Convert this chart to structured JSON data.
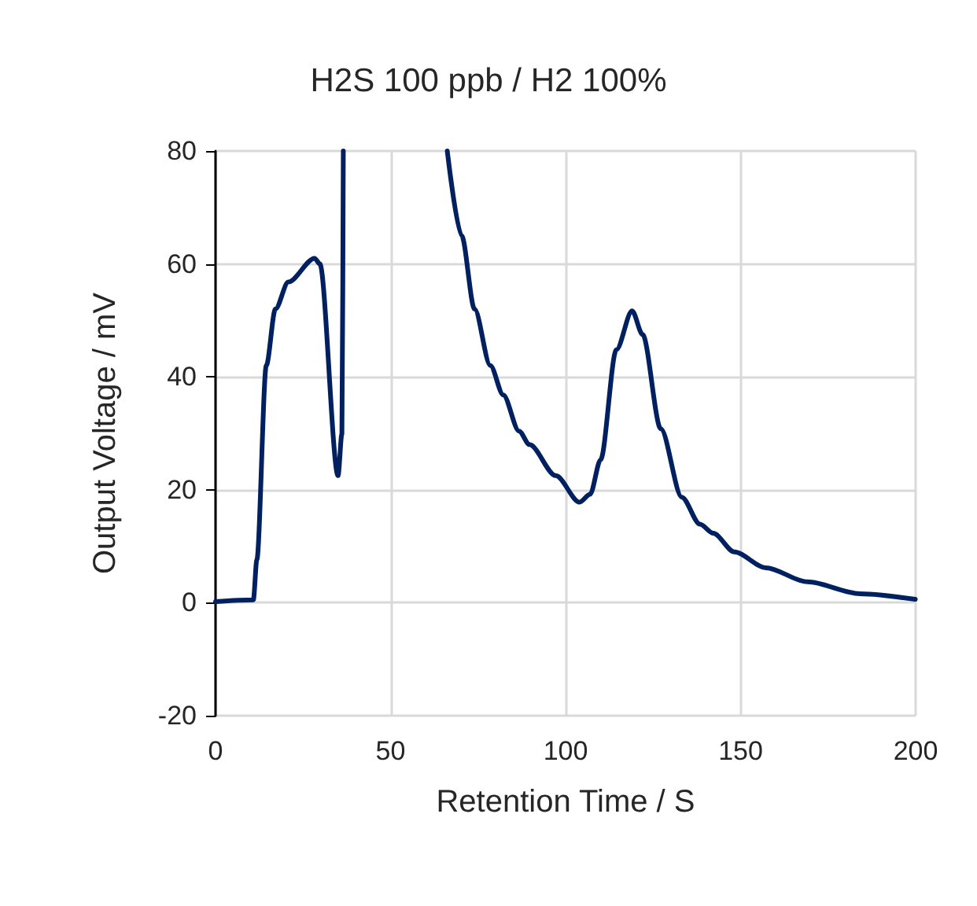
{
  "chart_data": {
    "type": "line",
    "title": "H2S 100 ppb / H2 100%",
    "xlabel": "Retention Time / S",
    "ylabel": "Output Voltage / mV",
    "x": [
      0,
      10.8,
      11.8,
      14.5,
      17.1,
      20.8,
      28.3,
      29.8,
      35,
      36.1,
      36.5,
      50,
      66.2,
      70.3,
      74,
      78.5,
      82.2,
      86.7,
      89.7,
      97.2,
      104,
      107,
      110,
      114.5,
      119,
      122,
      127.2,
      133.2,
      138.4,
      142.2,
      148.2,
      157.2,
      169.1,
      184.1,
      199.9
    ],
    "series": [
      {
        "color": "#002060",
        "values": [
          0.2,
          0.5,
          7.6,
          42,
          52,
          56.8,
          61,
          60,
          22.5,
          29.9,
          80,
          null,
          80,
          65,
          52,
          42,
          36.8,
          30.4,
          28,
          22.5,
          17.8,
          19.2,
          25.3,
          44.8,
          51.7,
          47.5,
          30.8,
          18.7,
          13.9,
          12.3,
          9,
          6.2,
          3.7,
          1.6,
          0.6
        ]
      }
    ],
    "xlim": [
      0,
      200
    ],
    "xticks": [
      0,
      50,
      100,
      150,
      200
    ],
    "ylim": [
      -20,
      80
    ],
    "yticks": [
      -20,
      0,
      20,
      40,
      60,
      80
    ],
    "grid": true,
    "marker": "none",
    "line_style": "solid"
  }
}
